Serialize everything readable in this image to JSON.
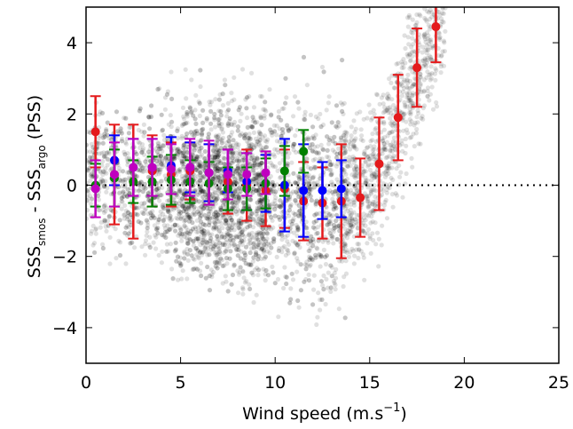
{
  "chart_data": {
    "type": "scatter",
    "title": "",
    "xlabel": {
      "main": "Wind speed (m.s",
      "sup": "−1",
      "close": ")"
    },
    "ylabel": {
      "p1": "SSS",
      "sub1": "smos",
      "p2": " - SSS",
      "sub2": "argo",
      "p3": " (PSS)"
    },
    "xlim": [
      0,
      25
    ],
    "ylim": [
      -5,
      5
    ],
    "xticks": [
      0,
      5,
      10,
      15,
      20,
      25
    ],
    "xtick_labels": [
      "0",
      "5",
      "10",
      "15",
      "20",
      "25"
    ],
    "yticks": [
      -4,
      -2,
      0,
      2,
      4
    ],
    "ytick_labels": [
      "−4",
      "−2",
      "0",
      "2",
      "4"
    ],
    "reference_line": {
      "y": 0,
      "style": "dotted"
    },
    "background_scatter": {
      "color": "#000000",
      "description": "dense grey point cloud of individual matchups"
    },
    "series": [
      {
        "color": "#e41a1c",
        "x": [
          0.5,
          1.5,
          2.5,
          3.5,
          4.5,
          5.5,
          6.5,
          7.5,
          8.5,
          9.5,
          10.5,
          11.5,
          12.5,
          13.5,
          14.5,
          15.5,
          16.5,
          17.5,
          18.5
        ],
        "y": [
          1.5,
          0.3,
          0.1,
          0.4,
          0.3,
          0.4,
          0.35,
          0.1,
          0.0,
          -0.15,
          -0.1,
          -0.45,
          -0.5,
          -0.45,
          -0.35,
          0.6,
          1.9,
          3.3,
          4.45
        ],
        "err": [
          1.0,
          1.4,
          1.6,
          1.0,
          0.9,
          0.8,
          0.8,
          0.9,
          1.0,
          1.0,
          1.1,
          1.1,
          1.0,
          1.6,
          1.1,
          1.3,
          1.2,
          1.1,
          1.0
        ]
      },
      {
        "color": "#0000ff",
        "x": [
          1.5,
          2.5,
          3.5,
          4.5,
          5.5,
          6.5,
          7.5,
          8.5,
          9.5,
          10.5,
          11.5,
          12.5,
          13.5
        ],
        "y": [
          0.7,
          0.5,
          0.5,
          0.55,
          0.5,
          0.35,
          0.4,
          0.1,
          0.05,
          0.0,
          -0.15,
          -0.15,
          -0.1
        ],
        "err": [
          0.7,
          0.8,
          0.8,
          0.8,
          0.7,
          0.8,
          0.6,
          0.8,
          0.8,
          1.3,
          1.3,
          0.8,
          0.8
        ]
      },
      {
        "color": "#008000",
        "x": [
          0.5,
          1.5,
          2.5,
          3.5,
          4.5,
          5.5,
          6.5,
          7.5,
          8.5,
          9.5,
          10.5,
          11.5
        ],
        "y": [
          0.0,
          0.2,
          0.1,
          0.1,
          0.15,
          0.1,
          0.05,
          -0.1,
          -0.1,
          0.05,
          0.4,
          0.95
        ],
        "err": [
          0.6,
          0.8,
          0.6,
          0.7,
          0.7,
          0.6,
          0.6,
          0.6,
          0.6,
          0.7,
          0.7,
          0.6
        ]
      },
      {
        "color": "#bf00bf",
        "x": [
          0.5,
          1.5,
          2.5,
          3.5,
          4.5,
          5.5,
          6.5,
          7.5,
          8.5,
          9.5
        ],
        "y": [
          -0.1,
          0.3,
          0.5,
          0.5,
          0.45,
          0.5,
          0.35,
          0.3,
          0.3,
          0.35
        ],
        "err": [
          0.8,
          0.9,
          0.8,
          0.8,
          0.7,
          0.8,
          0.9,
          0.7,
          0.6,
          0.6
        ]
      }
    ]
  }
}
